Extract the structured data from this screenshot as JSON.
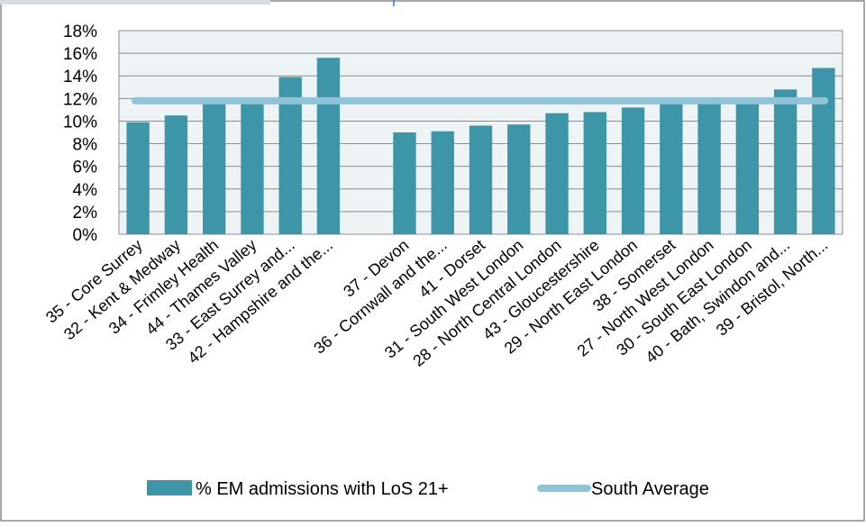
{
  "chart_data": {
    "type": "bar",
    "categories": [
      "35 - Core Surrey",
      "32 - Kent & Medway",
      "34 - Frimley Health",
      "44 - Thames Valley",
      "33 - East Surrey and...",
      "42 - Hampshire and the...",
      "",
      "37 - Devon",
      "36 - Cornwall and the...",
      "41 - Dorset",
      "31 - South West London",
      "28 - North Central London",
      "43 - Gloucestershire",
      "29 - North East London",
      "38 - Somerset",
      "27 - North West London",
      "30 - South East London",
      "40 - Bath, Swindon and...",
      "39 - Bristol, North..."
    ],
    "series": [
      {
        "name": "% EM admissions with LoS 21+",
        "type": "bar",
        "color": "#3d95a8",
        "values": [
          9.9,
          10.5,
          11.5,
          11.6,
          13.9,
          15.6,
          null,
          9.0,
          9.1,
          9.6,
          9.7,
          10.7,
          10.8,
          11.2,
          11.5,
          11.6,
          11.7,
          12.8,
          14.7
        ]
      },
      {
        "name": "South Average",
        "type": "line",
        "color": "#8ec3d8",
        "value": 11.8
      }
    ],
    "y_ticks": [
      "0%",
      "2%",
      "4%",
      "6%",
      "8%",
      "10%",
      "12%",
      "14%",
      "16%",
      "18%"
    ],
    "ylim": [
      0,
      18
    ],
    "grid": true,
    "legend_position": "bottom",
    "plot_background": "#eef3f6",
    "gridline_color": "#8c8c8c"
  }
}
